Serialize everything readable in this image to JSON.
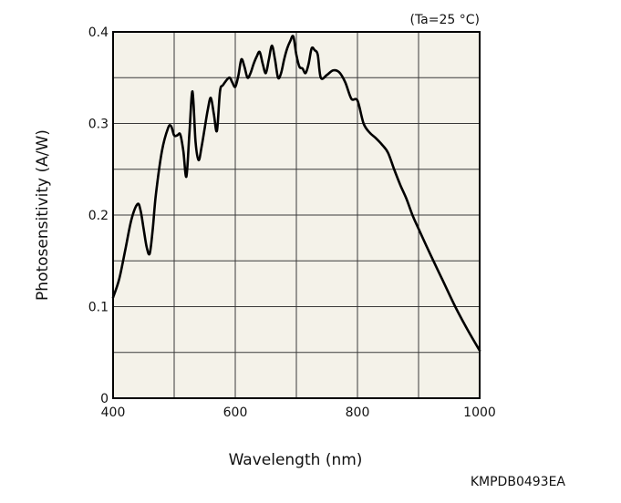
{
  "chart_data": {
    "type": "line",
    "condition_label": "(Ta=25 °C)",
    "xlabel": "Wavelength (nm)",
    "ylabel": "Photosensitivity (A/W)",
    "figure_code": "KMPDB0493EA",
    "xlim": [
      400,
      1000
    ],
    "ylim": [
      0,
      0.4
    ],
    "x_ticks": [
      400,
      600,
      800,
      1000
    ],
    "x_tick_labels": [
      "400",
      "600",
      "800",
      "1000"
    ],
    "x_grid": [
      400,
      500,
      600,
      700,
      800,
      900,
      1000
    ],
    "y_ticks": [
      0,
      0.1,
      0.2,
      0.3,
      0.4
    ],
    "y_tick_labels": [
      "0",
      "0.1",
      "0.2",
      "0.3",
      "0.4"
    ],
    "y_grid": [
      0,
      0.05,
      0.1,
      0.15,
      0.2,
      0.25,
      0.3,
      0.35,
      0.4
    ],
    "grid": true,
    "colors": {
      "plot_bg": "#f4f2e9",
      "grid": "#3a3a3a",
      "line": "#000000"
    },
    "series": [
      {
        "x": [
          400,
          410,
          420,
          430,
          440,
          445,
          450,
          455,
          460,
          465,
          470,
          480,
          490,
          495,
          500,
          505,
          510,
          515,
          520,
          525,
          530,
          535,
          540,
          545,
          550,
          555,
          560,
          565,
          570,
          575,
          580,
          590,
          595,
          600,
          605,
          610,
          615,
          620,
          625,
          630,
          635,
          640,
          645,
          650,
          655,
          660,
          665,
          670,
          675,
          680,
          685,
          690,
          695,
          700,
          705,
          710,
          715,
          720,
          725,
          730,
          735,
          740,
          750,
          760,
          770,
          780,
          790,
          800,
          810,
          820,
          830,
          840,
          850,
          860,
          870,
          880,
          890,
          900,
          920,
          940,
          960,
          980,
          1000
        ],
        "y": [
          0.11,
          0.13,
          0.162,
          0.195,
          0.212,
          0.205,
          0.185,
          0.165,
          0.158,
          0.185,
          0.222,
          0.27,
          0.295,
          0.297,
          0.287,
          0.287,
          0.288,
          0.27,
          0.242,
          0.29,
          0.335,
          0.28,
          0.26,
          0.275,
          0.295,
          0.315,
          0.328,
          0.31,
          0.292,
          0.335,
          0.342,
          0.35,
          0.345,
          0.34,
          0.352,
          0.37,
          0.362,
          0.35,
          0.355,
          0.365,
          0.373,
          0.378,
          0.365,
          0.355,
          0.37,
          0.385,
          0.37,
          0.35,
          0.355,
          0.37,
          0.382,
          0.39,
          0.395,
          0.375,
          0.362,
          0.36,
          0.355,
          0.365,
          0.382,
          0.38,
          0.375,
          0.35,
          0.353,
          0.358,
          0.356,
          0.345,
          0.327,
          0.325,
          0.3,
          0.29,
          0.284,
          0.277,
          0.268,
          0.25,
          0.233,
          0.218,
          0.2,
          0.185,
          0.156,
          0.128,
          0.1,
          0.075,
          0.052
        ]
      }
    ]
  }
}
